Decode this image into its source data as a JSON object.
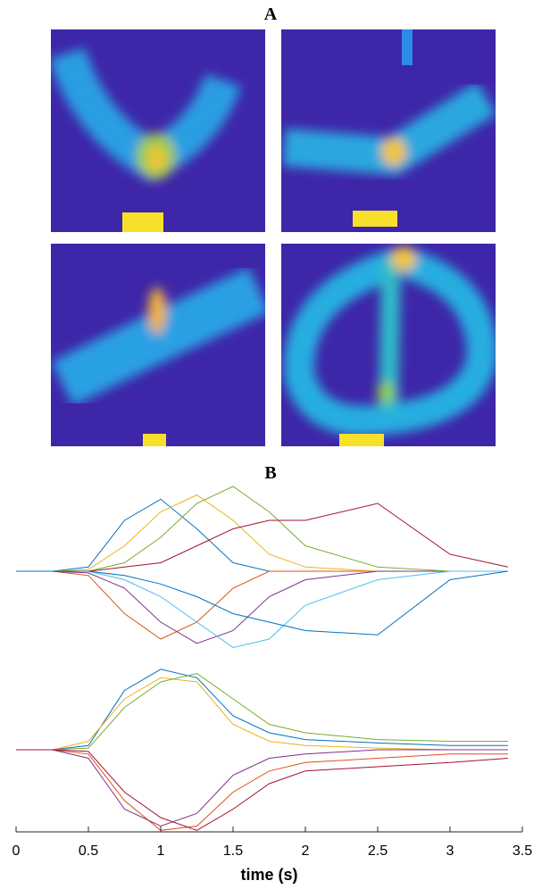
{
  "panel_a": {
    "label": "A"
  },
  "panel_b": {
    "label": "B"
  },
  "chart_data": [
    {
      "type": "line",
      "x": [
        0,
        0.25,
        0.5,
        0.75,
        1,
        1.25,
        1.5,
        1.75,
        2,
        2.5,
        3,
        3.4
      ],
      "xlim": [
        0,
        3.5
      ],
      "ylim": [
        -1,
        1
      ],
      "series": [
        {
          "color": "#0072bd",
          "values": [
            0,
            0,
            0.05,
            0.6,
            0.85,
            0.5,
            0.1,
            0,
            0,
            0,
            0,
            0
          ]
        },
        {
          "color": "#d95319",
          "values": [
            0,
            0,
            -0.05,
            -0.5,
            -0.8,
            -0.6,
            -0.2,
            0,
            0,
            0,
            0,
            0
          ]
        },
        {
          "color": "#edb120",
          "values": [
            0,
            0,
            0.02,
            0.3,
            0.7,
            0.9,
            0.6,
            0.2,
            0.05,
            0,
            0,
            0
          ]
        },
        {
          "color": "#7e2f8e",
          "values": [
            0,
            0,
            -0.02,
            -0.2,
            -0.6,
            -0.85,
            -0.7,
            -0.3,
            -0.1,
            0,
            0,
            0
          ]
        },
        {
          "color": "#77ac30",
          "values": [
            0,
            0,
            0,
            0.1,
            0.4,
            0.8,
            1.0,
            0.7,
            0.3,
            0.05,
            0,
            0
          ]
        },
        {
          "color": "#4dbeee",
          "values": [
            0,
            0,
            0,
            -0.1,
            -0.3,
            -0.6,
            -0.9,
            -0.8,
            -0.4,
            -0.1,
            0,
            0
          ]
        },
        {
          "color": "#a2142f",
          "values": [
            0,
            0,
            0,
            0.05,
            0.1,
            0.3,
            0.5,
            0.6,
            0.6,
            0.8,
            0.2,
            0.05
          ]
        },
        {
          "color": "#0072bd",
          "values": [
            0,
            0,
            0,
            -0.05,
            -0.15,
            -0.3,
            -0.5,
            -0.6,
            -0.7,
            -0.75,
            -0.1,
            0
          ]
        }
      ]
    },
    {
      "type": "line",
      "x": [
        0,
        0.25,
        0.5,
        0.75,
        1,
        1.25,
        1.5,
        1.75,
        2,
        2.5,
        3,
        3.4
      ],
      "xlim": [
        0,
        3.5
      ],
      "ylim": [
        -1,
        1
      ],
      "xticks": [
        0,
        0.5,
        1,
        1.5,
        2,
        2.5,
        3,
        3.5
      ],
      "xlabel": "time (s)",
      "series": [
        {
          "color": "#0072bd",
          "values": [
            0,
            0,
            0.05,
            0.7,
            0.95,
            0.85,
            0.4,
            0.2,
            0.12,
            0.08,
            0.05,
            0.05
          ]
        },
        {
          "color": "#d95319",
          "values": [
            0,
            0,
            -0.05,
            -0.6,
            -0.95,
            -0.9,
            -0.5,
            -0.25,
            -0.15,
            -0.1,
            -0.05,
            -0.05
          ]
        },
        {
          "color": "#edb120",
          "values": [
            0,
            0,
            0.1,
            0.6,
            0.85,
            0.8,
            0.3,
            0.1,
            0.05,
            0.02,
            0,
            0
          ]
        },
        {
          "color": "#7e2f8e",
          "values": [
            0,
            0,
            -0.1,
            -0.7,
            -0.9,
            -0.75,
            -0.3,
            -0.1,
            -0.05,
            0,
            0,
            0
          ]
        },
        {
          "color": "#77ac30",
          "values": [
            0,
            0,
            0.02,
            0.5,
            0.8,
            0.9,
            0.6,
            0.3,
            0.2,
            0.12,
            0.1,
            0.1
          ]
        },
        {
          "color": "#a2142f",
          "values": [
            0,
            0,
            -0.02,
            -0.5,
            -0.8,
            -0.95,
            -0.7,
            -0.4,
            -0.25,
            -0.2,
            -0.15,
            -0.1
          ]
        }
      ]
    }
  ]
}
